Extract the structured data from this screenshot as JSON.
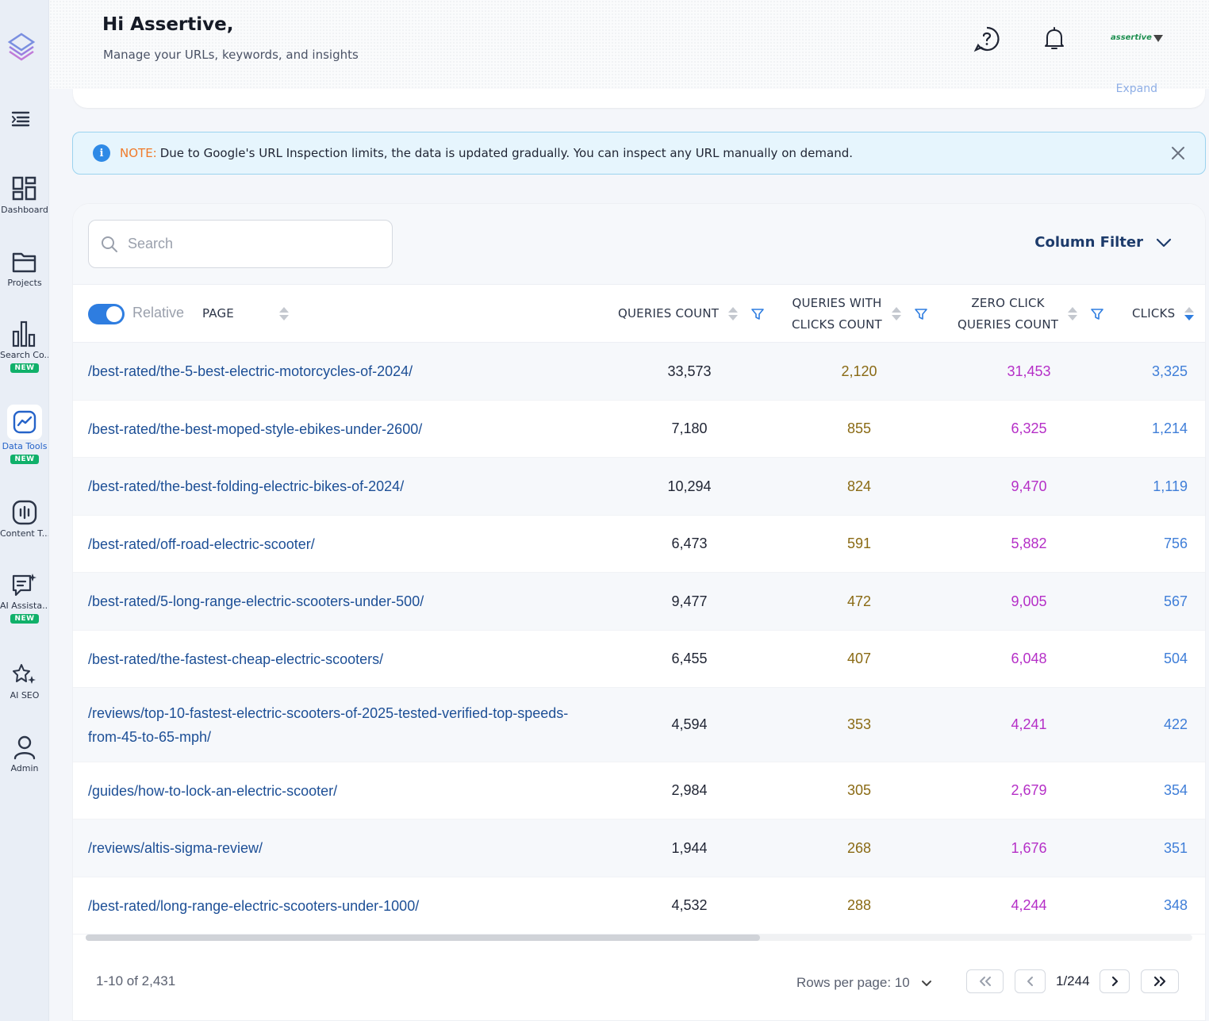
{
  "sidebar": {
    "items": [
      {
        "label": "Dashboard",
        "icon": "dashboard-icon",
        "badge": ""
      },
      {
        "label": "Projects",
        "icon": "folder-icon",
        "badge": ""
      },
      {
        "label": "Search Co...",
        "icon": "bar-chart-icon",
        "badge": "NEW"
      },
      {
        "label": "Data Tools",
        "icon": "line-chart-icon",
        "badge": "NEW"
      },
      {
        "label": "Content T...",
        "icon": "content-icon",
        "badge": ""
      },
      {
        "label": "AI Assista...",
        "icon": "chat-sparkle-icon",
        "badge": "NEW"
      },
      {
        "label": "AI SEO",
        "icon": "stars-icon",
        "badge": ""
      },
      {
        "label": "Admin",
        "icon": "user-icon",
        "badge": ""
      }
    ]
  },
  "header": {
    "greeting": "Hi Assertive,",
    "subtitle": "Manage your URLs, keywords, and insights",
    "brand": "assertive"
  },
  "top_card": {
    "expand_label": "Expand"
  },
  "note": {
    "tag": "NOTE:",
    "text": "Due to Google's URL Inspection limits, the data is updated gradually. You can inspect any URL manually on demand."
  },
  "table": {
    "search_placeholder": "Search",
    "column_filter_label": "Column Filter",
    "relative_label": "Relative",
    "columns": {
      "page": "PAGE",
      "queries_count": "QUERIES COUNT",
      "queries_with_clicks_line1": "QUERIES WITH",
      "queries_with_clicks_line2": "CLICKS COUNT",
      "zero_click_line1": "ZERO CLICK",
      "zero_click_line2": "QUERIES COUNT",
      "clicks": "CLICKS"
    },
    "rows": [
      {
        "page": "/best-rated/the-5-best-electric-motorcycles-of-2024/",
        "queries": "33,573",
        "qwc": "2,120",
        "zero": "31,453",
        "clicks": "3,325"
      },
      {
        "page": "/best-rated/the-best-moped-style-ebikes-under-2600/",
        "queries": "7,180",
        "qwc": "855",
        "zero": "6,325",
        "clicks": "1,214"
      },
      {
        "page": "/best-rated/the-best-folding-electric-bikes-of-2024/",
        "queries": "10,294",
        "qwc": "824",
        "zero": "9,470",
        "clicks": "1,119"
      },
      {
        "page": "/best-rated/off-road-electric-scooter/",
        "queries": "6,473",
        "qwc": "591",
        "zero": "5,882",
        "clicks": "756"
      },
      {
        "page": "/best-rated/5-long-range-electric-scooters-under-500/",
        "queries": "9,477",
        "qwc": "472",
        "zero": "9,005",
        "clicks": "567"
      },
      {
        "page": "/best-rated/the-fastest-cheap-electric-scooters/",
        "queries": "6,455",
        "qwc": "407",
        "zero": "6,048",
        "clicks": "504"
      },
      {
        "page": "/reviews/top-10-fastest-electric-scooters-of-2025-tested-verified-top-speeds-from-45-to-65-mph/",
        "queries": "4,594",
        "qwc": "353",
        "zero": "4,241",
        "clicks": "422"
      },
      {
        "page": "/guides/how-to-lock-an-electric-scooter/",
        "queries": "2,984",
        "qwc": "305",
        "zero": "2,679",
        "clicks": "354"
      },
      {
        "page": "/reviews/altis-sigma-review/",
        "queries": "1,944",
        "qwc": "268",
        "zero": "1,676",
        "clicks": "351"
      },
      {
        "page": "/best-rated/long-range-electric-scooters-under-1000/",
        "queries": "4,532",
        "qwc": "288",
        "zero": "4,244",
        "clicks": "348"
      }
    ]
  },
  "pagination": {
    "range": "1-10 of 2,431",
    "rows_per_page": "Rows per page: 10",
    "page_indicator": "1/244"
  },
  "colors": {
    "accent": "#2e7de0",
    "link": "#1d4f96",
    "queries_with_clicks": "#8a6a14",
    "zero_click": "#b52fc7",
    "clicks": "#3f7ed8",
    "new_badge": "#10b06a",
    "note_tag": "#f07a2a"
  }
}
